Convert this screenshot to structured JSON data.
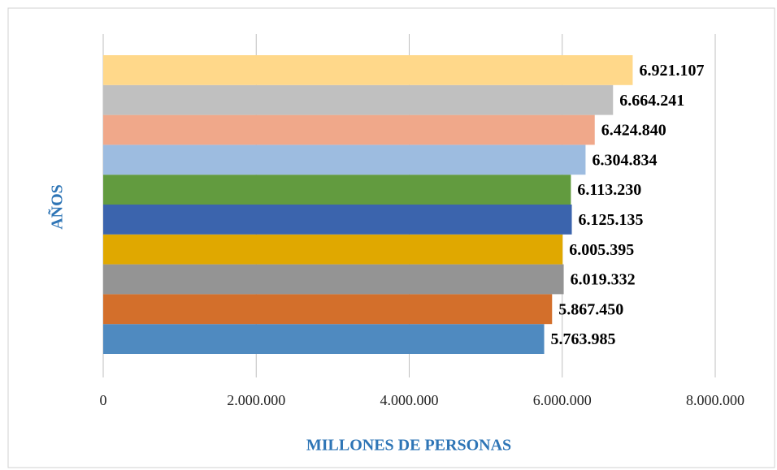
{
  "chart_data": {
    "type": "bar",
    "orientation": "horizontal",
    "x_label": "MILLONES DE PERSONAS",
    "y_label": "AÑOS",
    "categories": [
      null,
      null,
      null,
      null,
      null,
      null,
      null,
      null,
      null,
      null
    ],
    "values": [
      5763985,
      5867450,
      6019332,
      6005395,
      6125135,
      6113230,
      6304834,
      6424840,
      6664241,
      6921107
    ],
    "value_labels": [
      "5.763.985",
      "5.867.450",
      "6.019.332",
      "6.005.395",
      "6.125.135",
      "6.113.230",
      "6.304.834",
      "6.424.840",
      "6.664.241",
      "6.921.107"
    ],
    "colors": [
      "#4f8ac0",
      "#d36f2b",
      "#949494",
      "#e0a800",
      "#3b64ad",
      "#629b3f",
      "#9dbce0",
      "#f0a88a",
      "#c0c0c0",
      "#ffd88a"
    ],
    "xlim": [
      0,
      8000000
    ],
    "xticks": [
      0,
      {
        "value": 2000000,
        "label": "2.000.000"
      },
      {
        "value": 4000000,
        "label": "4.000.000"
      },
      {
        "value": 6000000,
        "label": "6.000.000"
      },
      {
        "value": 8000000,
        "label": "8.000.000"
      }
    ],
    "grid": true
  }
}
